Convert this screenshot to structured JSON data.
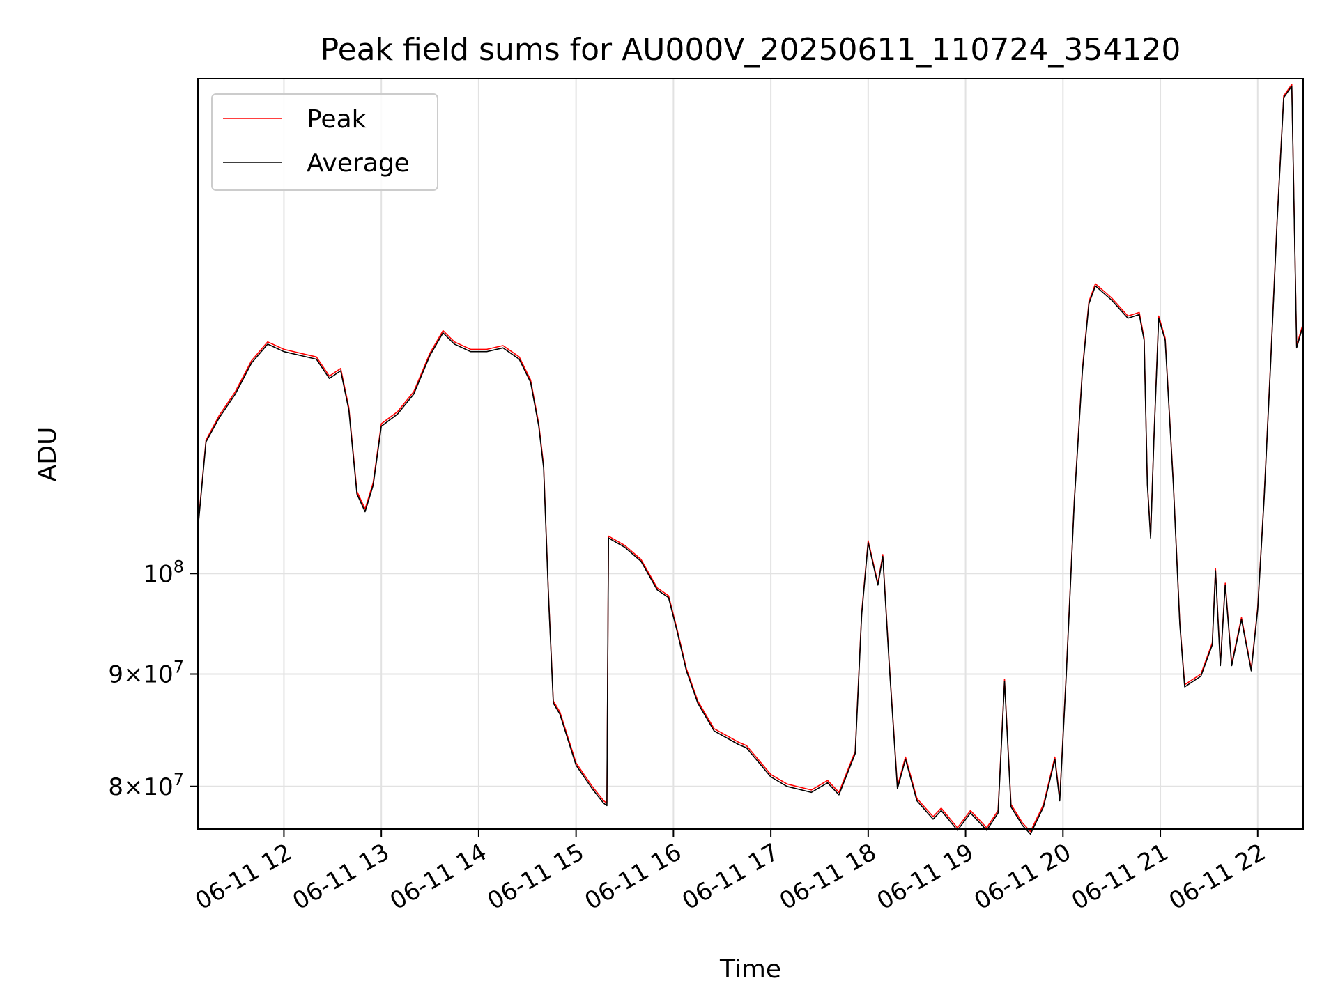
{
  "chart_data": {
    "type": "line",
    "title": "Peak field sums for AU000V_20250611_110724_354120",
    "xlabel": "Time",
    "ylabel": "ADU",
    "y_scale": "log",
    "grid": true,
    "legend_position": "upper-left",
    "x_range": [
      "2025-06-11 11:07",
      "2025-06-11 22:28"
    ],
    "ylim": [
      76500000,
      168000000
    ],
    "x_ticks": [
      {
        "t": "2025-06-11 12:00",
        "label": "06-11 12"
      },
      {
        "t": "2025-06-11 13:00",
        "label": "06-11 13"
      },
      {
        "t": "2025-06-11 14:00",
        "label": "06-11 14"
      },
      {
        "t": "2025-06-11 15:00",
        "label": "06-11 15"
      },
      {
        "t": "2025-06-11 16:00",
        "label": "06-11 16"
      },
      {
        "t": "2025-06-11 17:00",
        "label": "06-11 17"
      },
      {
        "t": "2025-06-11 18:00",
        "label": "06-11 18"
      },
      {
        "t": "2025-06-11 19:00",
        "label": "06-11 19"
      },
      {
        "t": "2025-06-11 20:00",
        "label": "06-11 20"
      },
      {
        "t": "2025-06-11 21:00",
        "label": "06-11 21"
      },
      {
        "t": "2025-06-11 22:00",
        "label": "06-11 22"
      }
    ],
    "y_ticks": [
      {
        "value": 100000000,
        "mantissa": "",
        "base": "10",
        "exp": "8"
      },
      {
        "value": 90000000,
        "mantissa": "9",
        "base": "10",
        "exp": "7"
      },
      {
        "value": 80000000,
        "mantissa": "8",
        "base": "10",
        "exp": "7"
      }
    ],
    "series": [
      {
        "name": "Peak",
        "color": "#ff0000",
        "points": [
          [
            "2025-06-11 11:07",
            105000000
          ],
          [
            "2025-06-11 11:12",
            115000000
          ],
          [
            "2025-06-11 11:20",
            118000000
          ],
          [
            "2025-06-11 11:30",
            121000000
          ],
          [
            "2025-06-11 11:40",
            125000000
          ],
          [
            "2025-06-11 11:50",
            127500000
          ],
          [
            "2025-06-11 12:00",
            126500000
          ],
          [
            "2025-06-11 12:10",
            126000000
          ],
          [
            "2025-06-11 12:20",
            125500000
          ],
          [
            "2025-06-11 12:28",
            123000000
          ],
          [
            "2025-06-11 12:35",
            124000000
          ],
          [
            "2025-06-11 12:40",
            119000000
          ],
          [
            "2025-06-11 12:45",
            109000000
          ],
          [
            "2025-06-11 12:50",
            107000000
          ],
          [
            "2025-06-11 12:55",
            110000000
          ],
          [
            "2025-06-11 13:00",
            117000000
          ],
          [
            "2025-06-11 13:10",
            118500000
          ],
          [
            "2025-06-11 13:20",
            121000000
          ],
          [
            "2025-06-11 13:30",
            126000000
          ],
          [
            "2025-06-11 13:38",
            129000000
          ],
          [
            "2025-06-11 13:45",
            127500000
          ],
          [
            "2025-06-11 13:55",
            126500000
          ],
          [
            "2025-06-11 14:05",
            126500000
          ],
          [
            "2025-06-11 14:15",
            127000000
          ],
          [
            "2025-06-11 14:25",
            125500000
          ],
          [
            "2025-06-11 14:32",
            122500000
          ],
          [
            "2025-06-11 14:37",
            117000000
          ],
          [
            "2025-06-11 14:40",
            112000000
          ],
          [
            "2025-06-11 14:43",
            98000000
          ],
          [
            "2025-06-11 14:46",
            87500000
          ],
          [
            "2025-06-11 14:50",
            86500000
          ],
          [
            "2025-06-11 15:00",
            82000000
          ],
          [
            "2025-06-11 15:10",
            80000000
          ],
          [
            "2025-06-11 15:17",
            78800000
          ],
          [
            "2025-06-11 15:19",
            78600000
          ],
          [
            "2025-06-11 15:20",
            104000000
          ],
          [
            "2025-06-11 15:30",
            103000000
          ],
          [
            "2025-06-11 15:40",
            101500000
          ],
          [
            "2025-06-11 15:50",
            98500000
          ],
          [
            "2025-06-11 15:57",
            97700000
          ],
          [
            "2025-06-11 16:02",
            94500000
          ],
          [
            "2025-06-11 16:08",
            90500000
          ],
          [
            "2025-06-11 16:15",
            87500000
          ],
          [
            "2025-06-11 16:25",
            85000000
          ],
          [
            "2025-06-11 16:40",
            83800000
          ],
          [
            "2025-06-11 16:45",
            83500000
          ],
          [
            "2025-06-11 17:00",
            81000000
          ],
          [
            "2025-06-11 17:10",
            80200000
          ],
          [
            "2025-06-11 17:25",
            79700000
          ],
          [
            "2025-06-11 17:35",
            80500000
          ],
          [
            "2025-06-11 17:42",
            79500000
          ],
          [
            "2025-06-11 17:52",
            83000000
          ],
          [
            "2025-06-11 17:56",
            96000000
          ],
          [
            "2025-06-11 18:00",
            103500000
          ],
          [
            "2025-06-11 18:06",
            99000000
          ],
          [
            "2025-06-11 18:09",
            102000000
          ],
          [
            "2025-06-11 18:13",
            91000000
          ],
          [
            "2025-06-11 18:18",
            80000000
          ],
          [
            "2025-06-11 18:23",
            82500000
          ],
          [
            "2025-06-11 18:30",
            79000000
          ],
          [
            "2025-06-11 18:40",
            77500000
          ],
          [
            "2025-06-11 18:45",
            78200000
          ],
          [
            "2025-06-11 18:55",
            76600000
          ],
          [
            "2025-06-11 19:03",
            78000000
          ],
          [
            "2025-06-11 19:13",
            76600000
          ],
          [
            "2025-06-11 19:20",
            78000000
          ],
          [
            "2025-06-11 19:24",
            89500000
          ],
          [
            "2025-06-11 19:28",
            78500000
          ],
          [
            "2025-06-11 19:35",
            77000000
          ],
          [
            "2025-06-11 19:40",
            76300000
          ],
          [
            "2025-06-11 19:48",
            78500000
          ],
          [
            "2025-06-11 19:55",
            82500000
          ],
          [
            "2025-06-11 19:58",
            79000000
          ],
          [
            "2025-06-11 20:02",
            90000000
          ],
          [
            "2025-06-11 20:07",
            108000000
          ],
          [
            "2025-06-11 20:12",
            124000000
          ],
          [
            "2025-06-11 20:16",
            133000000
          ],
          [
            "2025-06-11 20:20",
            135500000
          ],
          [
            "2025-06-11 20:30",
            133500000
          ],
          [
            "2025-06-11 20:40",
            131000000
          ],
          [
            "2025-06-11 20:47",
            131500000
          ],
          [
            "2025-06-11 20:50",
            128000000
          ],
          [
            "2025-06-11 20:52",
            110000000
          ],
          [
            "2025-06-11 20:54",
            104000000
          ],
          [
            "2025-06-11 20:56",
            115000000
          ],
          [
            "2025-06-11 20:59",
            131000000
          ],
          [
            "2025-06-11 21:03",
            128000000
          ],
          [
            "2025-06-11 21:08",
            110000000
          ],
          [
            "2025-06-11 21:12",
            95000000
          ],
          [
            "2025-06-11 21:15",
            89000000
          ],
          [
            "2025-06-11 21:25",
            90000000
          ],
          [
            "2025-06-11 21:32",
            93000000
          ],
          [
            "2025-06-11 21:34",
            100500000
          ],
          [
            "2025-06-11 21:37",
            91000000
          ],
          [
            "2025-06-11 21:40",
            99000000
          ],
          [
            "2025-06-11 21:44",
            91000000
          ],
          [
            "2025-06-11 21:50",
            95500000
          ],
          [
            "2025-06-11 21:56",
            90500000
          ],
          [
            "2025-06-11 22:00",
            96500000
          ],
          [
            "2025-06-11 22:04",
            108500000
          ],
          [
            "2025-06-11 22:08",
            125000000
          ],
          [
            "2025-06-11 22:12",
            145000000
          ],
          [
            "2025-06-11 22:16",
            165000000
          ],
          [
            "2025-06-11 22:21",
            167000000
          ],
          [
            "2025-06-11 22:24",
            127000000
          ],
          [
            "2025-06-11 22:28",
            130000000
          ]
        ]
      },
      {
        "name": "Average",
        "color": "#000000",
        "points": [
          [
            "2025-06-11 11:07",
            104800000
          ],
          [
            "2025-06-11 11:12",
            114800000
          ],
          [
            "2025-06-11 11:20",
            117700000
          ],
          [
            "2025-06-11 11:30",
            120700000
          ],
          [
            "2025-06-11 11:40",
            124700000
          ],
          [
            "2025-06-11 11:50",
            127200000
          ],
          [
            "2025-06-11 12:00",
            126200000
          ],
          [
            "2025-06-11 12:10",
            125700000
          ],
          [
            "2025-06-11 12:20",
            125200000
          ],
          [
            "2025-06-11 12:28",
            122700000
          ],
          [
            "2025-06-11 12:35",
            123700000
          ],
          [
            "2025-06-11 12:40",
            118700000
          ],
          [
            "2025-06-11 12:45",
            108700000
          ],
          [
            "2025-06-11 12:50",
            106700000
          ],
          [
            "2025-06-11 12:55",
            109700000
          ],
          [
            "2025-06-11 13:00",
            116700000
          ],
          [
            "2025-06-11 13:10",
            118200000
          ],
          [
            "2025-06-11 13:20",
            120700000
          ],
          [
            "2025-06-11 13:30",
            125700000
          ],
          [
            "2025-06-11 13:38",
            128700000
          ],
          [
            "2025-06-11 13:45",
            127200000
          ],
          [
            "2025-06-11 13:55",
            126200000
          ],
          [
            "2025-06-11 14:05",
            126200000
          ],
          [
            "2025-06-11 14:15",
            126700000
          ],
          [
            "2025-06-11 14:25",
            125200000
          ],
          [
            "2025-06-11 14:32",
            122200000
          ],
          [
            "2025-06-11 14:37",
            116700000
          ],
          [
            "2025-06-11 14:40",
            111700000
          ],
          [
            "2025-06-11 14:43",
            97800000
          ],
          [
            "2025-06-11 14:46",
            87300000
          ],
          [
            "2025-06-11 14:50",
            86300000
          ],
          [
            "2025-06-11 15:00",
            81800000
          ],
          [
            "2025-06-11 15:10",
            79800000
          ],
          [
            "2025-06-11 15:17",
            78600000
          ],
          [
            "2025-06-11 15:19",
            78400000
          ],
          [
            "2025-06-11 15:20",
            103800000
          ],
          [
            "2025-06-11 15:30",
            102800000
          ],
          [
            "2025-06-11 15:40",
            101300000
          ],
          [
            "2025-06-11 15:50",
            98300000
          ],
          [
            "2025-06-11 15:57",
            97500000
          ],
          [
            "2025-06-11 16:02",
            94300000
          ],
          [
            "2025-06-11 16:08",
            90300000
          ],
          [
            "2025-06-11 16:15",
            87300000
          ],
          [
            "2025-06-11 16:25",
            84800000
          ],
          [
            "2025-06-11 16:40",
            83600000
          ],
          [
            "2025-06-11 16:45",
            83300000
          ],
          [
            "2025-06-11 17:00",
            80800000
          ],
          [
            "2025-06-11 17:10",
            80000000
          ],
          [
            "2025-06-11 17:25",
            79500000
          ],
          [
            "2025-06-11 17:35",
            80300000
          ],
          [
            "2025-06-11 17:42",
            79300000
          ],
          [
            "2025-06-11 17:52",
            82800000
          ],
          [
            "2025-06-11 17:56",
            95800000
          ],
          [
            "2025-06-11 18:00",
            103300000
          ],
          [
            "2025-06-11 18:06",
            98800000
          ],
          [
            "2025-06-11 18:09",
            101800000
          ],
          [
            "2025-06-11 18:13",
            90800000
          ],
          [
            "2025-06-11 18:18",
            79800000
          ],
          [
            "2025-06-11 18:23",
            82300000
          ],
          [
            "2025-06-11 18:30",
            78800000
          ],
          [
            "2025-06-11 18:40",
            77300000
          ],
          [
            "2025-06-11 18:45",
            78000000
          ],
          [
            "2025-06-11 18:55",
            76400000
          ],
          [
            "2025-06-11 19:03",
            77800000
          ],
          [
            "2025-06-11 19:13",
            76400000
          ],
          [
            "2025-06-11 19:20",
            77800000
          ],
          [
            "2025-06-11 19:24",
            89300000
          ],
          [
            "2025-06-11 19:28",
            78300000
          ],
          [
            "2025-06-11 19:35",
            76800000
          ],
          [
            "2025-06-11 19:40",
            76100000
          ],
          [
            "2025-06-11 19:48",
            78300000
          ],
          [
            "2025-06-11 19:55",
            82300000
          ],
          [
            "2025-06-11 19:58",
            78800000
          ],
          [
            "2025-06-11 20:02",
            89800000
          ],
          [
            "2025-06-11 20:07",
            107800000
          ],
          [
            "2025-06-11 20:12",
            123700000
          ],
          [
            "2025-06-11 20:16",
            132700000
          ],
          [
            "2025-06-11 20:20",
            135200000
          ],
          [
            "2025-06-11 20:30",
            133200000
          ],
          [
            "2025-06-11 20:40",
            130700000
          ],
          [
            "2025-06-11 20:47",
            131200000
          ],
          [
            "2025-06-11 20:50",
            127700000
          ],
          [
            "2025-06-11 20:52",
            109800000
          ],
          [
            "2025-06-11 20:54",
            103800000
          ],
          [
            "2025-06-11 20:56",
            114800000
          ],
          [
            "2025-06-11 20:59",
            130700000
          ],
          [
            "2025-06-11 21:03",
            127700000
          ],
          [
            "2025-06-11 21:08",
            109800000
          ],
          [
            "2025-06-11 21:12",
            94800000
          ],
          [
            "2025-06-11 21:15",
            88800000
          ],
          [
            "2025-06-11 21:25",
            89800000
          ],
          [
            "2025-06-11 21:32",
            92800000
          ],
          [
            "2025-06-11 21:34",
            100300000
          ],
          [
            "2025-06-11 21:37",
            90800000
          ],
          [
            "2025-06-11 21:40",
            98800000
          ],
          [
            "2025-06-11 21:44",
            90800000
          ],
          [
            "2025-06-11 21:50",
            95300000
          ],
          [
            "2025-06-11 21:56",
            90300000
          ],
          [
            "2025-06-11 22:00",
            96300000
          ],
          [
            "2025-06-11 22:04",
            108300000
          ],
          [
            "2025-06-11 22:08",
            124700000
          ],
          [
            "2025-06-11 22:12",
            144700000
          ],
          [
            "2025-06-11 22:16",
            164700000
          ],
          [
            "2025-06-11 22:21",
            166700000
          ],
          [
            "2025-06-11 22:24",
            126700000
          ],
          [
            "2025-06-11 22:28",
            129700000
          ]
        ]
      }
    ]
  }
}
